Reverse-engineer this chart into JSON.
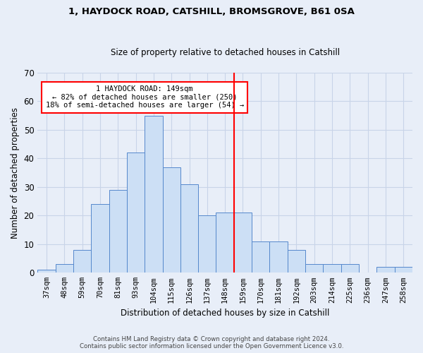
{
  "title_line1": "1, HAYDOCK ROAD, CATSHILL, BROMSGROVE, B61 0SA",
  "title_line2": "Size of property relative to detached houses in Catshill",
  "xlabel": "Distribution of detached houses by size in Catshill",
  "ylabel": "Number of detached properties",
  "bar_labels": [
    "37sqm",
    "48sqm",
    "59sqm",
    "70sqm",
    "81sqm",
    "93sqm",
    "104sqm",
    "115sqm",
    "126sqm",
    "137sqm",
    "148sqm",
    "159sqm",
    "170sqm",
    "181sqm",
    "192sqm",
    "203sqm",
    "214sqm",
    "225sqm",
    "236sqm",
    "247sqm",
    "258sqm"
  ],
  "bar_values": [
    1,
    3,
    8,
    24,
    29,
    42,
    55,
    37,
    31,
    20,
    21,
    21,
    11,
    11,
    8,
    3,
    3,
    3,
    0,
    2,
    2
  ],
  "bar_color": "#ccdff5",
  "bar_edge_color": "#5588cc",
  "grid_color": "#c8d4e8",
  "background_color": "#e8eef8",
  "vline_color": "red",
  "annotation_text": "1 HAYDOCK ROAD: 149sqm\n← 82% of detached houses are smaller (250)\n18% of semi-detached houses are larger (54) →",
  "annotation_box_color": "white",
  "annotation_box_edge": "red",
  "ylim": [
    0,
    70
  ],
  "yticks": [
    0,
    10,
    20,
    30,
    40,
    50,
    60,
    70
  ],
  "footnote1": "Contains HM Land Registry data © Crown copyright and database right 2024.",
  "footnote2": "Contains public sector information licensed under the Open Government Licence v3.0."
}
